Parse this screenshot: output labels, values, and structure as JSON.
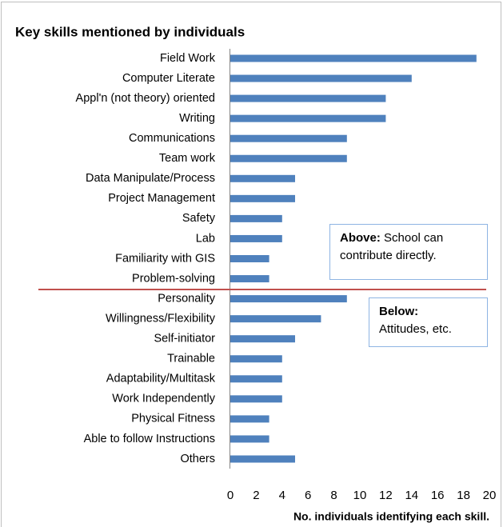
{
  "chart_data": {
    "type": "bar",
    "orientation": "horizontal",
    "title": "Key skills mentioned by individuals",
    "x_label": "No. individuals identifying each skill.",
    "categories": [
      "Field Work",
      "Computer Literate",
      "Appl'n (not theory) oriented",
      "Writing",
      "Communications",
      "Team work",
      "Data Manipulate/Process",
      "Project Management",
      "Safety",
      "Lab",
      "Familiarity with GIS",
      "Problem-solving",
      "Personality",
      "Willingness/Flexibility",
      "Self-initiator",
      "Trainable",
      "Adaptability/Multitask",
      "Work Independently",
      "Physical Fitness",
      "Able to follow Instructions",
      "Others"
    ],
    "values": [
      19,
      14,
      12,
      12,
      9,
      9,
      5,
      5,
      4,
      4,
      3,
      3,
      9,
      7,
      5,
      4,
      4,
      4,
      3,
      3,
      5
    ],
    "color": "#4f81bd",
    "xlim": [
      0,
      20
    ],
    "xticks": [
      0,
      2,
      4,
      6,
      8,
      10,
      12,
      14,
      16,
      18,
      20
    ],
    "grid": false,
    "annotations": [
      {
        "bold": "Above:",
        "text": "School can contribute directly."
      },
      {
        "bold": "Below:",
        "text": "Attitudes, etc."
      }
    ]
  }
}
